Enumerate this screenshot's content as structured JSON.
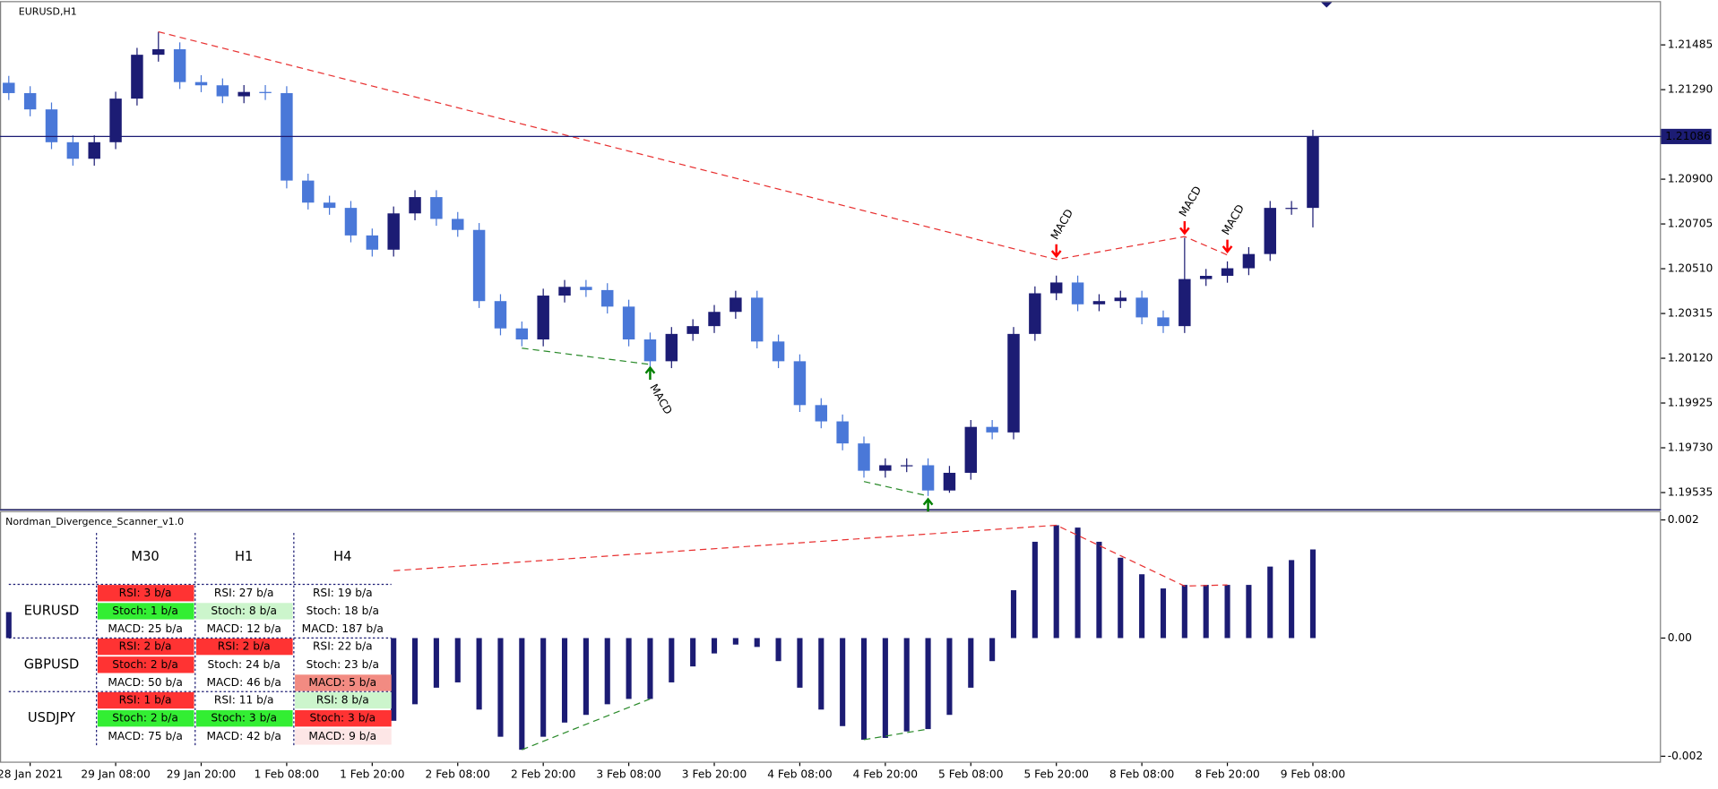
{
  "chart_data": [
    {
      "type": "candlestick",
      "title": "EURUSD,H1",
      "categories": [
        null,
        "28 Jan 2021",
        null,
        null,
        null,
        "29 Jan 08:00",
        null,
        null,
        null,
        "29 Jan 20:00",
        null,
        null,
        null,
        "1 Feb 08:00",
        null,
        null,
        null,
        "1 Feb 20:00",
        null,
        null,
        null,
        "2 Feb 08:00",
        null,
        null,
        null,
        "2 Feb 20:00",
        null,
        null,
        null,
        "3 Feb 08:00",
        null,
        null,
        null,
        "3 Feb 20:00",
        null,
        null,
        null,
        "4 Feb 08:00",
        null,
        null,
        null,
        "4 Feb 20:00",
        null,
        null,
        null,
        "5 Feb 08:00",
        null,
        null,
        null,
        "5 Feb 20:00",
        null,
        null,
        null,
        "8 Feb 08:00",
        null,
        null,
        null,
        "8 Feb 20:00",
        null,
        null,
        null,
        "9 Feb 08:00"
      ],
      "open": [
        1.2132,
        1.21275,
        1.21204,
        1.21061,
        1.20989,
        1.21061,
        1.21251,
        1.21442,
        1.21466,
        1.21323,
        1.21309,
        1.21261,
        1.2128,
        1.21275,
        1.20894,
        1.20798,
        1.20775,
        1.20655,
        1.20593,
        1.20751,
        1.20822,
        1.20727,
        1.20679,
        1.20369,
        1.2025,
        1.20202,
        1.20393,
        1.20431,
        1.20417,
        1.20345,
        1.20202,
        1.20107,
        1.20226,
        1.2026,
        1.20322,
        1.20384,
        1.20193,
        1.20107,
        1.19916,
        1.19845,
        1.19749,
        1.1963,
        1.19654,
        1.19654,
        1.19544,
        1.19621,
        1.19821,
        1.19797,
        1.20226,
        1.20403,
        1.2045,
        1.20355,
        1.20369,
        1.20384,
        1.20298,
        1.2026,
        1.20465,
        1.20479,
        1.20512,
        1.20574,
        1.20775,
        1.20775
      ],
      "high": [
        1.2135,
        1.21305,
        1.21234,
        1.21091,
        1.21091,
        1.21281,
        1.21472,
        1.21542,
        1.21496,
        1.21353,
        1.21339,
        1.2131,
        1.2131,
        1.21305,
        1.20924,
        1.20828,
        1.20805,
        1.20685,
        1.20781,
        1.20852,
        1.20852,
        1.20757,
        1.20709,
        1.20399,
        1.2028,
        1.20423,
        1.20461,
        1.20461,
        1.20447,
        1.20375,
        1.20232,
        1.20256,
        1.2029,
        1.20352,
        1.20414,
        1.20414,
        1.20223,
        1.20137,
        1.19946,
        1.19875,
        1.19779,
        1.19684,
        1.19684,
        1.19684,
        1.19651,
        1.19851,
        1.19851,
        1.20256,
        1.20433,
        1.2048,
        1.2048,
        1.20399,
        1.20414,
        1.20414,
        1.20328,
        1.20645,
        1.20509,
        1.20542,
        1.20604,
        1.20805,
        1.20805,
        1.21115
      ],
      "low": [
        1.21245,
        1.21174,
        1.21031,
        1.20959,
        1.20959,
        1.21031,
        1.21221,
        1.21412,
        1.21293,
        1.21279,
        1.21231,
        1.21231,
        1.21245,
        1.2086,
        1.20768,
        1.20745,
        1.20625,
        1.20563,
        1.20563,
        1.20721,
        1.20697,
        1.20649,
        1.20339,
        1.2022,
        1.20172,
        1.20172,
        1.20363,
        1.20387,
        1.20315,
        1.20172,
        1.20077,
        1.20077,
        1.20196,
        1.2023,
        1.20292,
        1.20163,
        1.20077,
        1.19886,
        1.19815,
        1.19719,
        1.196,
        1.196,
        1.19624,
        1.1952,
        1.19534,
        1.19591,
        1.19767,
        1.19767,
        1.20196,
        1.20373,
        1.20325,
        1.20325,
        1.20339,
        1.20268,
        1.2023,
        1.2023,
        1.20435,
        1.20449,
        1.20482,
        1.20544,
        1.20745,
        1.2069
      ],
      "close": [
        1.21275,
        1.21204,
        1.21061,
        1.20989,
        1.21061,
        1.21251,
        1.21442,
        1.21466,
        1.21323,
        1.21309,
        1.21261,
        1.2128,
        1.21275,
        1.20894,
        1.20798,
        1.20775,
        1.20655,
        1.20593,
        1.20751,
        1.20822,
        1.20727,
        1.20679,
        1.20369,
        1.2025,
        1.20202,
        1.20393,
        1.20431,
        1.20417,
        1.20345,
        1.20202,
        1.20107,
        1.20226,
        1.2026,
        1.20322,
        1.20384,
        1.20193,
        1.20107,
        1.19916,
        1.19845,
        1.19749,
        1.1963,
        1.19654,
        1.19654,
        1.19544,
        1.19621,
        1.19821,
        1.19797,
        1.20226,
        1.20403,
        1.2045,
        1.20355,
        1.20369,
        1.20384,
        1.20298,
        1.2026,
        1.20465,
        1.20479,
        1.20512,
        1.20574,
        1.20775,
        1.20775,
        1.21086
      ],
      "up_color": "#1c1c74",
      "down_color": "#4a78d8",
      "ylim": [
        1.19464,
        1.21671
      ],
      "yticks": [
        1.21485,
        {
          "value": 1.2129,
          "label": "1.21290"
        },
        {
          "value": 1.209,
          "label": "1.20900"
        },
        1.20705,
        {
          "value": 1.2051,
          "label": "1.20510"
        },
        1.20315,
        {
          "value": 1.2012,
          "label": "1.20120"
        },
        1.19925,
        {
          "value": 1.1973,
          "label": "1.19730"
        },
        1.19535
      ],
      "current_price": 1.21086,
      "current_price_color": "#1c1c74",
      "lines": [
        {
          "color": "#e83030",
          "x": [
            7,
            49,
            55,
            57
          ],
          "y": [
            1.21542,
            1.2055,
            1.2065,
            1.2057
          ]
        },
        {
          "color": "#2a8a2a",
          "x": [
            24,
            30
          ],
          "y": [
            1.20164,
            1.20093
          ]
        },
        {
          "color": "#2a8a2a",
          "x": [
            40,
            43
          ],
          "y": [
            1.19583,
            1.1952
          ]
        }
      ],
      "signals": [
        {
          "x": 49,
          "y": 1.2055,
          "label": "MACD",
          "color": "#ff0000",
          "side": "above"
        },
        {
          "x": 55,
          "y": 1.2065,
          "label": "MACD",
          "color": "#ff0000",
          "side": "above"
        },
        {
          "x": 57,
          "y": 1.2057,
          "label": "MACD",
          "color": "#ff0000",
          "side": "above"
        },
        {
          "x": 30,
          "y": 1.20093,
          "label": "MACD",
          "color": "#008000",
          "side": "below"
        },
        {
          "x": 43,
          "y": 1.1952,
          "color": "#008000",
          "side": "below"
        }
      ]
    },
    {
      "type": "bar",
      "title": "Nordman_Divergence_Scanner_v1.0",
      "values": [
        0.00044,
        null,
        null,
        null,
        null,
        null,
        null,
        null,
        null,
        null,
        null,
        null,
        null,
        null,
        null,
        null,
        null,
        null,
        -0.0014,
        -0.00112,
        -0.00084,
        -0.00075,
        -0.00121,
        -0.00167,
        -0.00189,
        -0.00167,
        -0.00143,
        -0.0013,
        -0.00112,
        -0.00103,
        -0.00103,
        -0.00075,
        -0.00048,
        -0.00026,
        -0.00011,
        -0.00015,
        -0.00039,
        -0.00084,
        -0.00121,
        -0.00149,
        -0.00172,
        -0.00169,
        -0.00158,
        -0.00154,
        -0.0013,
        -0.00084,
        -0.00039,
        0.00081,
        0.00163,
        0.00191,
        0.00187,
        0.00163,
        0.00136,
        0.00108,
        0.00084,
        0.0009,
        0.0009,
        0.0009,
        0.0009,
        0.00121,
        0.00132,
        0.0015
      ],
      "color": "#1c1c74",
      "ylim": [
        -0.00211,
        0.00215
      ],
      "yticks": [
        0.002,
        {
          "value": 0,
          "label": "0.00"
        },
        -0.002
      ],
      "lines": [
        {
          "color": "#e83030",
          "x": [
            18,
            49,
            55,
            57
          ],
          "y": [
            0.00114,
            0.00191,
            0.00088,
            0.0009
          ]
        },
        {
          "color": "#2a8a2a",
          "x": [
            24,
            30
          ],
          "y": [
            -0.00189,
            -0.00103
          ]
        },
        {
          "color": "#2a8a2a",
          "x": [
            40,
            43
          ],
          "y": [
            -0.00172,
            -0.00154
          ]
        }
      ]
    }
  ],
  "scanner_table": {
    "columns": [
      "M30",
      "H1",
      "H4"
    ],
    "rows": [
      {
        "symbol": "EURUSD",
        "cells": [
          [
            {
              "text": "RSI: 3 b/a",
              "bg": "#ff3333"
            },
            {
              "text": "Stoch: 1 b/a",
              "bg": "#33ee33"
            },
            {
              "text": "MACD: 25 b/a"
            }
          ],
          [
            {
              "text": "RSI: 27 b/a"
            },
            {
              "text": "Stoch: 8 b/a",
              "bg": "#ccf5cc"
            },
            {
              "text": "MACD: 12 b/a"
            }
          ],
          [
            {
              "text": "RSI: 19 b/a"
            },
            {
              "text": "Stoch: 18 b/a"
            },
            {
              "text": "MACD: 187 b/a"
            }
          ]
        ]
      },
      {
        "symbol": "GBPUSD",
        "cells": [
          [
            {
              "text": "RSI: 2 b/a",
              "bg": "#ff3333"
            },
            {
              "text": "Stoch: 2 b/a",
              "bg": "#ff3333"
            },
            {
              "text": "MACD: 50 b/a"
            }
          ],
          [
            {
              "text": "RSI: 2 b/a",
              "bg": "#ff3333"
            },
            {
              "text": "Stoch: 24 b/a"
            },
            {
              "text": "MACD: 46 b/a"
            }
          ],
          [
            {
              "text": "RSI: 22 b/a"
            },
            {
              "text": "Stoch: 23 b/a"
            },
            {
              "text": "MACD: 5 b/a",
              "bg": "#f28b82"
            }
          ]
        ]
      },
      {
        "symbol": "USDJPY",
        "cells": [
          [
            {
              "text": "RSI: 1 b/a",
              "bg": "#ff3333"
            },
            {
              "text": "Stoch: 2 b/a",
              "bg": "#33ee33"
            },
            {
              "text": "MACD: 75 b/a"
            }
          ],
          [
            {
              "text": "RSI: 11 b/a"
            },
            {
              "text": "Stoch: 3 b/a",
              "bg": "#33ee33"
            },
            {
              "text": "MACD: 42 b/a"
            }
          ],
          [
            {
              "text": "RSI: 8 b/a",
              "bg": "#ccf5cc"
            },
            {
              "text": "Stoch: 3 b/a",
              "bg": "#ff3333"
            },
            {
              "text": "MACD: 9 b/a",
              "bg": "#fde6e6"
            }
          ]
        ]
      }
    ]
  }
}
